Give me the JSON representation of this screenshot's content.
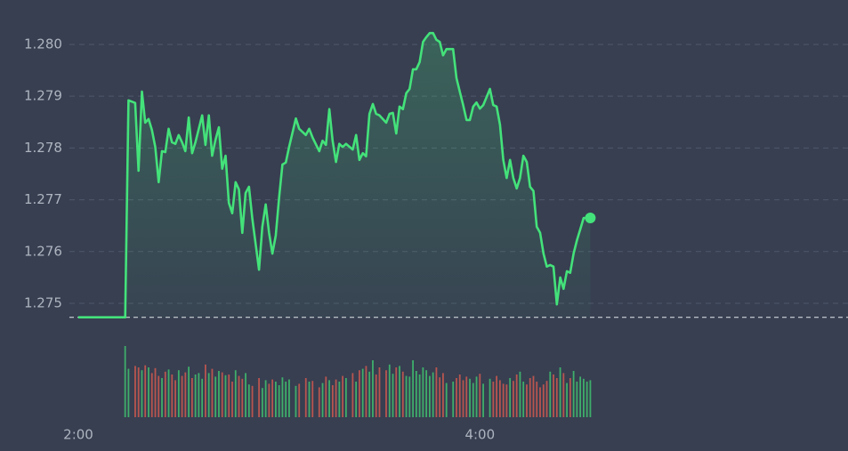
{
  "chart_data": {
    "type": "line",
    "x": [
      "2:00",
      "2:14",
      "2:15",
      "2:17",
      "2:18",
      "2:19",
      "2:20",
      "2:21",
      "2:22",
      "2:23",
      "2:24",
      "2:25",
      "2:26",
      "2:27",
      "2:28",
      "2:29",
      "2:30",
      "2:31",
      "2:32",
      "2:33",
      "2:34",
      "2:35",
      "2:36",
      "2:37",
      "2:38",
      "2:39",
      "2:40",
      "2:41",
      "2:42",
      "2:43",
      "2:44",
      "2:45",
      "2:46",
      "2:47",
      "2:48",
      "2:49",
      "2:50",
      "2:51",
      "2:52",
      "2:54",
      "2:55",
      "2:56",
      "2:57",
      "2:58",
      "2:59",
      "3:00",
      "3:01",
      "3:02",
      "3:03",
      "3:05",
      "3:06",
      "3:08",
      "3:09",
      "3:10",
      "3:12",
      "3:13",
      "3:14",
      "3:15",
      "3:16",
      "3:17",
      "3:18",
      "3:19",
      "3:20",
      "3:22",
      "3:23",
      "3:24",
      "3:25",
      "3:26",
      "3:27",
      "3:28",
      "3:29",
      "3:30",
      "3:32",
      "3:33",
      "3:34",
      "3:35",
      "3:36",
      "3:37",
      "3:38",
      "3:39",
      "3:40",
      "3:41",
      "3:42",
      "3:43",
      "3:44",
      "3:45",
      "3:46",
      "3:47",
      "3:48",
      "3:49",
      "3:50",
      "3:52",
      "3:53",
      "3:54",
      "3:55",
      "3:56",
      "3:57",
      "3:58",
      "3:59",
      "4:00",
      "4:01",
      "4:03",
      "4:04",
      "4:05",
      "4:06",
      "4:07",
      "4:08",
      "4:09",
      "4:10",
      "4:11",
      "4:12",
      "4:13",
      "4:14",
      "4:15",
      "4:16",
      "4:17",
      "4:18",
      "4:19",
      "4:20",
      "4:21",
      "4:22",
      "4:23",
      "4:24",
      "4:25",
      "4:26",
      "4:27",
      "4:28",
      "4:29",
      "4:30",
      "4:31",
      "4:32",
      "4:33"
    ],
    "series": [
      {
        "color": "#44e27a",
        "values": [
          1.27473,
          1.27473,
          1.27892,
          1.27887,
          1.27756,
          1.27909,
          1.27849,
          1.27856,
          1.27835,
          1.27802,
          1.27734,
          1.27794,
          1.27792,
          1.27837,
          1.27811,
          1.27808,
          1.27825,
          1.27811,
          1.27794,
          1.27859,
          1.2779,
          1.27811,
          1.27837,
          1.27863,
          1.27806,
          1.27863,
          1.27785,
          1.27816,
          1.2784,
          1.2776,
          1.27785,
          1.27694,
          1.27674,
          1.27734,
          1.2772,
          1.27636,
          1.27713,
          1.27725,
          1.27663,
          1.27565,
          1.27648,
          1.27691,
          1.27636,
          1.27596,
          1.27631,
          1.27705,
          1.27768,
          1.27772,
          1.27802,
          1.27857,
          1.27837,
          1.27825,
          1.27837,
          1.2782,
          1.27794,
          1.27814,
          1.27806,
          1.27875,
          1.27814,
          1.27773,
          1.27808,
          1.27802,
          1.27808,
          1.27797,
          1.27825,
          1.27777,
          1.2779,
          1.27784,
          1.27866,
          1.27885,
          1.27866,
          1.27863,
          1.27849,
          1.27866,
          1.27868,
          1.27828,
          1.2788,
          1.27875,
          1.27906,
          1.27914,
          1.27952,
          1.27952,
          1.27966,
          1.28005,
          1.28014,
          1.28022,
          1.28022,
          1.28009,
          1.28005,
          1.27979,
          1.27991,
          1.27991,
          1.27935,
          1.27909,
          1.27883,
          1.27854,
          1.27854,
          1.2788,
          1.27888,
          1.27876,
          1.27883,
          1.27914,
          1.27883,
          1.2788,
          1.27845,
          1.27777,
          1.27742,
          1.27777,
          1.27742,
          1.27722,
          1.27742,
          1.27785,
          1.27773,
          1.27725,
          1.27717,
          1.27648,
          1.27636,
          1.27596,
          1.27571,
          1.27574,
          1.27571,
          1.27498,
          1.2755,
          1.27528,
          1.27562,
          1.27559,
          1.27596,
          1.27622,
          1.27643,
          1.27665,
          1.27665,
          1.27665
        ]
      }
    ],
    "volume": {
      "up_color": "#3fae6a",
      "down_color": "#b9554f",
      "ylim": [
        0,
        100
      ],
      "values": [
        null,
        100,
        68,
        72,
        70,
        66,
        73,
        70,
        62,
        69,
        58,
        55,
        64,
        67,
        60,
        52,
        66,
        58,
        63,
        71,
        55,
        60,
        62,
        54,
        74,
        62,
        68,
        57,
        65,
        63,
        59,
        60,
        50,
        66,
        58,
        54,
        62,
        46,
        44,
        55,
        41,
        52,
        47,
        53,
        50,
        45,
        56,
        50,
        53,
        44,
        47,
        55,
        50,
        51,
        42,
        48,
        57,
        52,
        45,
        53,
        50,
        58,
        55,
        62,
        50,
        66,
        68,
        72,
        64,
        80,
        60,
        70,
        66,
        74,
        61,
        70,
        72,
        64,
        58,
        57,
        80,
        65,
        60,
        70,
        66,
        58,
        63,
        70,
        56,
        62,
        48,
        50,
        55,
        60,
        52,
        57,
        54,
        48,
        57,
        61,
        47,
        54,
        50,
        58,
        52,
        47,
        46,
        55,
        51,
        60,
        64,
        50,
        46,
        55,
        58,
        50,
        42,
        46,
        51,
        64,
        60,
        55,
        70,
        62,
        48,
        55,
        65,
        50,
        57,
        54,
        50,
        52
      ]
    },
    "xlim": [
      "2:00",
      "5:50"
    ],
    "xticks": [
      "2:00",
      "4:00"
    ],
    "ylim": [
      1.2745,
      1.2808
    ],
    "yticks": [
      {
        "value": 1.28,
        "label": "1.280"
      },
      1.279,
      1.278,
      1.277,
      1.276,
      1.275
    ],
    "grid": true
  }
}
